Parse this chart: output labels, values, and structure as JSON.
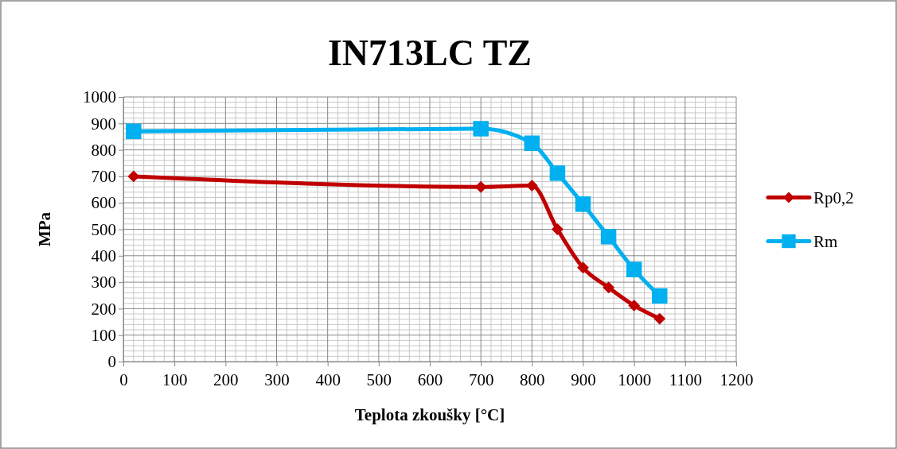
{
  "chart_data": {
    "type": "line",
    "title": "IN713LC TZ",
    "xlabel": "Teplota zkoušky [°C]",
    "ylabel": "MPa",
    "x": [
      20,
      700,
      800,
      850,
      900,
      950,
      1000,
      1050
    ],
    "series": [
      {
        "name": "Rp0,2",
        "color": "#c00000",
        "marker": "diamond",
        "values": [
          700,
          660,
          665,
          500,
          355,
          280,
          212,
          162
        ]
      },
      {
        "name": "Rm",
        "color": "#00b0f0",
        "marker": "square",
        "values": [
          870,
          880,
          825,
          712,
          595,
          472,
          348,
          248
        ]
      }
    ],
    "xlim": [
      0,
      1200
    ],
    "xticks": [
      0,
      100,
      200,
      300,
      400,
      500,
      600,
      700,
      800,
      900,
      1000,
      1100,
      1200
    ],
    "ylim": [
      0,
      1000
    ],
    "yticks": [
      0,
      100,
      200,
      300,
      400,
      500,
      600,
      700,
      800,
      900,
      1000
    ],
    "grid": true,
    "legend": "right"
  }
}
